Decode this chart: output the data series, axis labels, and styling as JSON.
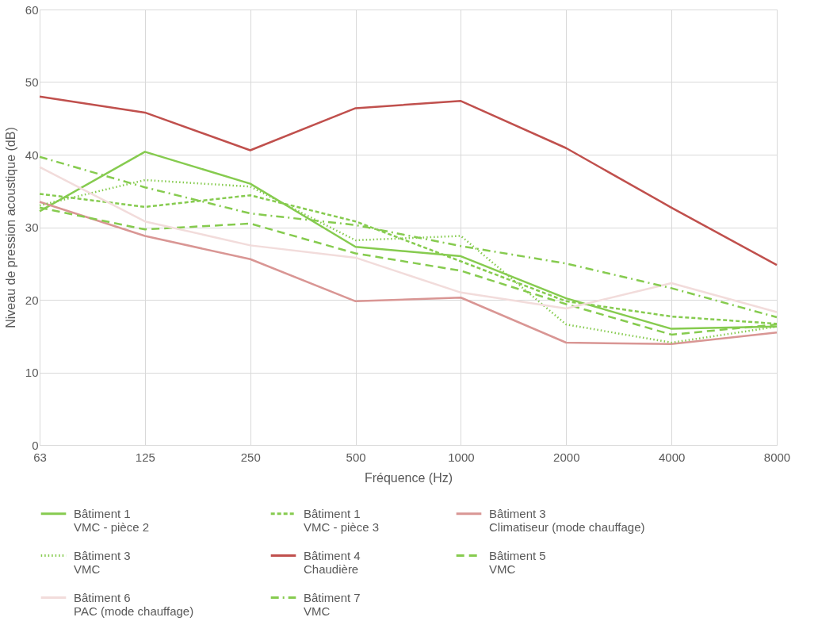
{
  "chart_data": {
    "type": "line",
    "xlabel": "Fréquence (Hz)",
    "ylabel": "Niveau de pression acoustique (dB)",
    "categories": [
      "63",
      "125",
      "250",
      "500",
      "1000",
      "2000",
      "4000",
      "8000"
    ],
    "ylim": [
      0,
      60
    ],
    "yticks": [
      0,
      10,
      20,
      30,
      40,
      50,
      60
    ],
    "grid": true,
    "legend": "bottom",
    "series": [
      {
        "name": "Bâtiment 1\nVMC - pièce 2",
        "color": "#86cb4f",
        "line_style": "solid",
        "values": [
          32.2,
          40.4,
          36.0,
          27.3,
          26.0,
          20.2,
          16.0,
          16.3
        ]
      },
      {
        "name": "Bâtiment 1\nVMC - pièce 3",
        "color": "#86cb4f",
        "line_style": "dashed",
        "values": [
          34.6,
          32.8,
          34.4,
          30.8,
          25.3,
          19.8,
          17.7,
          16.7
        ]
      },
      {
        "name": "Bâtiment 3\nClimatiseur (mode chauffage)",
        "color": "#d99694",
        "line_style": "solid",
        "values": [
          33.5,
          28.8,
          25.6,
          19.8,
          20.3,
          14.1,
          13.9,
          15.5
        ]
      },
      {
        "name": "Bâtiment 3\nVMC",
        "color": "#86cb4f",
        "line_style": "dotted",
        "values": [
          33.0,
          36.5,
          35.6,
          28.2,
          28.8,
          16.6,
          14.1,
          16.3
        ]
      },
      {
        "name": "Bâtiment 4\nChaudière",
        "color": "#c0504d",
        "line_style": "solid",
        "values": [
          48.0,
          45.8,
          40.6,
          46.4,
          47.4,
          40.9,
          32.7,
          24.8
        ]
      },
      {
        "name": "Bâtiment 5\nVMC",
        "color": "#86cb4f",
        "line_style": "longdash",
        "values": [
          32.7,
          29.7,
          30.5,
          26.4,
          24.0,
          19.4,
          15.2,
          16.6
        ]
      },
      {
        "name": "Bâtiment 6\nPAC (mode chauffage)",
        "color": "#f2dcdb",
        "line_style": "solid",
        "values": [
          38.3,
          30.8,
          27.5,
          25.8,
          21.0,
          18.8,
          22.3,
          18.3
        ]
      },
      {
        "name": "Bâtiment 7\nVMC",
        "color": "#86cb4f",
        "line_style": "dashdot",
        "values": [
          39.7,
          35.5,
          31.9,
          30.3,
          27.4,
          25.0,
          21.6,
          17.6
        ]
      }
    ]
  }
}
